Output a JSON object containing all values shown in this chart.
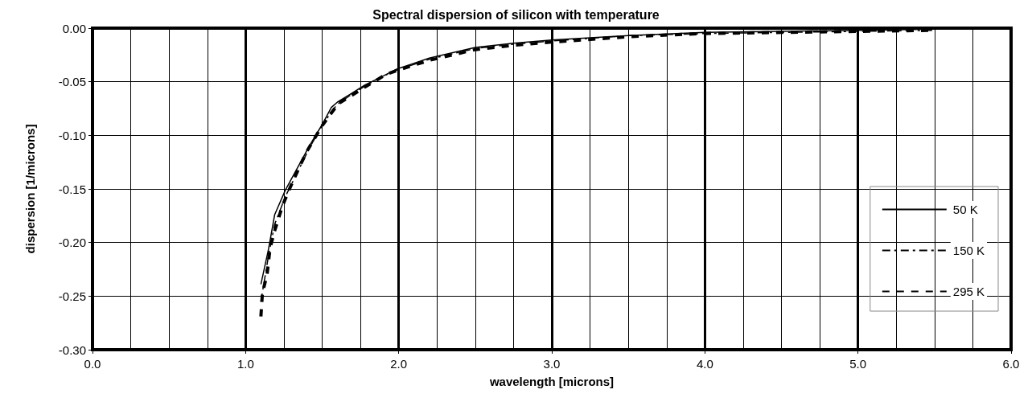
{
  "chart_data": {
    "type": "line",
    "title": "Spectral dispersion of silicon with temperature",
    "xlabel": "wavelength [microns]",
    "ylabel": "dispersion [1/microns]",
    "xlim": [
      0,
      6
    ],
    "xticks": [
      {
        "value": 0,
        "label": "0.0"
      },
      {
        "value": 1,
        "label": "1.0"
      },
      {
        "value": 2,
        "label": "2.0"
      },
      {
        "value": 3,
        "label": "3.0"
      },
      {
        "value": 4,
        "label": "4.0"
      },
      {
        "value": 5,
        "label": "5.0"
      },
      {
        "value": 6,
        "label": "6.0"
      }
    ],
    "ylim": [
      -0.3,
      0
    ],
    "yticks": [
      {
        "value": -0.3,
        "label": "-0.30"
      },
      {
        "value": -0.25,
        "label": "-0.25"
      },
      {
        "value": -0.2,
        "label": "-0.20"
      },
      {
        "value": -0.15,
        "label": "-0.15"
      },
      {
        "value": -0.1,
        "label": "-0.10"
      },
      {
        "value": -0.05,
        "label": "-0.05"
      },
      {
        "value": 0,
        "label": "0.00"
      }
    ],
    "grid": true,
    "legend": "right",
    "marker": "none",
    "series": [
      {
        "name": "50 K",
        "color": "#000000",
        "line_style": "solid",
        "x": [
          1.1,
          1.15,
          1.19,
          1.26,
          1.34,
          1.42,
          1.5,
          1.56,
          1.6,
          1.68,
          1.78,
          1.88,
          1.99,
          2.2,
          2.5,
          2.75,
          3.0,
          3.5,
          4.0,
          4.5,
          5.0,
          5.5
        ],
        "values": [
          -0.239,
          -0.206,
          -0.174,
          -0.151,
          -0.13,
          -0.109,
          -0.09,
          -0.074,
          -0.069,
          -0.062,
          -0.053,
          -0.046,
          -0.038,
          -0.028,
          -0.018,
          -0.014,
          -0.011,
          -0.007,
          -0.004,
          -0.003,
          -0.002,
          -0.001
        ]
      },
      {
        "name": "150 K",
        "color": "#000000",
        "line_style": "dashed",
        "x": [
          1.1,
          1.15,
          1.19,
          1.26,
          1.34,
          1.42,
          1.5,
          1.56,
          1.6,
          1.68,
          1.78,
          1.88,
          1.99,
          2.2,
          2.5,
          2.75,
          3.0,
          3.5,
          4.0,
          4.5,
          5.0,
          5.5
        ],
        "values": [
          -0.255,
          -0.212,
          -0.183,
          -0.157,
          -0.134,
          -0.111,
          -0.091,
          -0.078,
          -0.071,
          -0.063,
          -0.054,
          -0.046,
          -0.039,
          -0.029,
          -0.019,
          -0.015,
          -0.012,
          -0.007,
          -0.005,
          -0.004,
          -0.003,
          -0.002
        ]
      },
      {
        "name": "295 K",
        "color": "#000000",
        "line_style": "dashed",
        "x": [
          1.1,
          1.11,
          1.14,
          1.16,
          1.19,
          1.24,
          1.29,
          1.35,
          1.4,
          1.45,
          1.5,
          1.55,
          1.61,
          1.69,
          1.79,
          1.92,
          2.0,
          2.2,
          2.5,
          2.75,
          3.0,
          3.5,
          4.0,
          4.5,
          5.0,
          5.5
        ],
        "values": [
          -0.269,
          -0.247,
          -0.23,
          -0.205,
          -0.189,
          -0.166,
          -0.149,
          -0.13,
          -0.115,
          -0.103,
          -0.091,
          -0.081,
          -0.07,
          -0.063,
          -0.054,
          -0.043,
          -0.039,
          -0.03,
          -0.02,
          -0.016,
          -0.013,
          -0.008,
          -0.005,
          -0.004,
          -0.003,
          -0.002
        ]
      }
    ]
  }
}
